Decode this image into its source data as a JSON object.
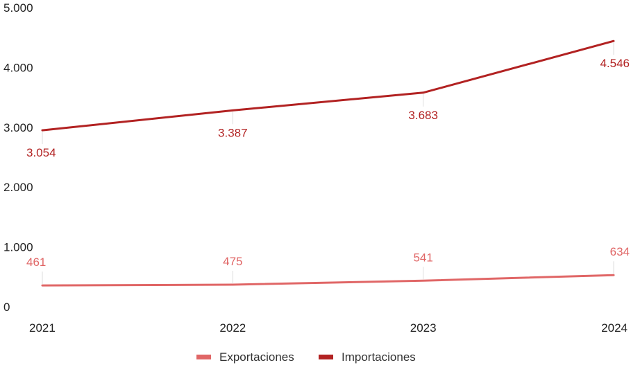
{
  "chart_data": {
    "type": "line",
    "categories": [
      "2021",
      "2022",
      "2023",
      "2024"
    ],
    "y_ticks": [
      "5.000",
      "4.000",
      "3.000",
      "2.000",
      "1.000",
      "0"
    ],
    "ylim": [
      0,
      5000
    ],
    "grid": false,
    "legend_position": "bottom",
    "series": [
      {
        "name": "Exportaciones",
        "color": "#e06666",
        "values": [
          461,
          475,
          541,
          634
        ],
        "labels": [
          "461",
          "475",
          "541",
          "634"
        ]
      },
      {
        "name": "Importaciones",
        "color": "#b22222",
        "values": [
          3054,
          3387,
          3683,
          4546
        ],
        "labels": [
          "3.054",
          "3.387",
          "3.683",
          "4.546"
        ]
      }
    ]
  }
}
